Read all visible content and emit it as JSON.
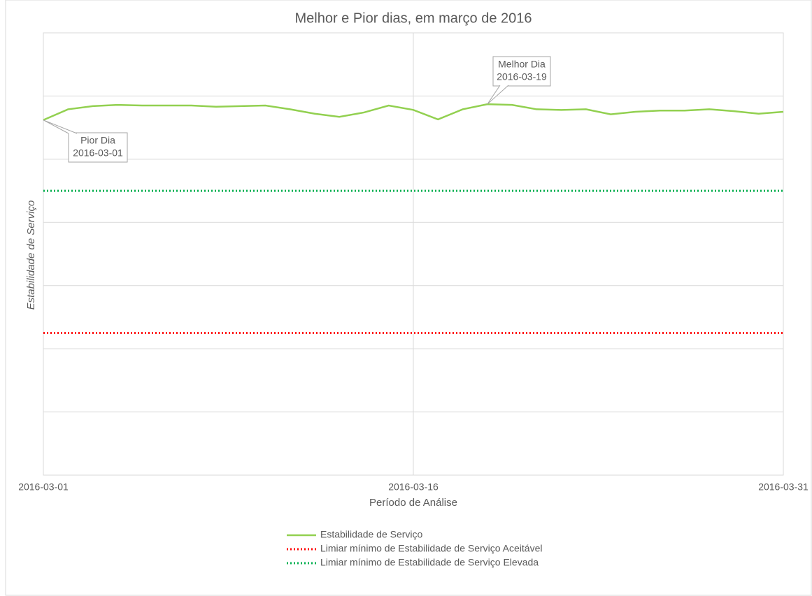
{
  "chart_data": {
    "type": "line",
    "title": "Melhor e Pior dias, em março de 2016",
    "x_label": "Período de Análise",
    "y_label": "Estabilidade de Serviço",
    "x": [
      "2016-03-01",
      "2016-03-02",
      "2016-03-03",
      "2016-03-04",
      "2016-03-05",
      "2016-03-06",
      "2016-03-07",
      "2016-03-08",
      "2016-03-09",
      "2016-03-10",
      "2016-03-11",
      "2016-03-12",
      "2016-03-13",
      "2016-03-14",
      "2016-03-15",
      "2016-03-16",
      "2016-03-17",
      "2016-03-18",
      "2016-03-19",
      "2016-03-20",
      "2016-03-21",
      "2016-03-22",
      "2016-03-23",
      "2016-03-24",
      "2016-03-25",
      "2016-03-26",
      "2016-03-27",
      "2016-03-28",
      "2016-03-29",
      "2016-03-30",
      "2016-03-31"
    ],
    "xticks": [
      "2016-03-01",
      "2016-03-16",
      "2016-03-31"
    ],
    "ylim": [
      0,
      7
    ],
    "yticks": [
      1,
      2,
      3,
      4,
      5,
      6
    ],
    "grid": true,
    "series": [
      {
        "name": "Estabilidade de Serviço",
        "color": "#92d050",
        "style": "solid",
        "values": [
          5.62,
          5.79,
          5.84,
          5.86,
          5.85,
          5.85,
          5.85,
          5.83,
          5.84,
          5.85,
          5.79,
          5.72,
          5.67,
          5.74,
          5.85,
          5.78,
          5.63,
          5.79,
          5.87,
          5.86,
          5.79,
          5.78,
          5.79,
          5.71,
          5.75,
          5.77,
          5.77,
          5.79,
          5.76,
          5.72,
          5.75
        ]
      },
      {
        "name": "Limiar mínimo de Estabilidade de Serviço Aceitável",
        "color": "#ff0000",
        "style": "dotted",
        "values": [
          2.25,
          2.25,
          2.25,
          2.25,
          2.25,
          2.25,
          2.25,
          2.25,
          2.25,
          2.25,
          2.25,
          2.25,
          2.25,
          2.25,
          2.25,
          2.25,
          2.25,
          2.25,
          2.25,
          2.25,
          2.25,
          2.25,
          2.25,
          2.25,
          2.25,
          2.25,
          2.25,
          2.25,
          2.25,
          2.25,
          2.25
        ]
      },
      {
        "name": "Limiar mínimo de Estabilidade de Serviço Elevada",
        "color": "#00b050",
        "style": "dotted",
        "values": [
          4.5,
          4.5,
          4.5,
          4.5,
          4.5,
          4.5,
          4.5,
          4.5,
          4.5,
          4.5,
          4.5,
          4.5,
          4.5,
          4.5,
          4.5,
          4.5,
          4.5,
          4.5,
          4.5,
          4.5,
          4.5,
          4.5,
          4.5,
          4.5,
          4.5,
          4.5,
          4.5,
          4.5,
          4.5,
          4.5,
          4.5
        ]
      }
    ],
    "annotations": [
      {
        "text": [
          "Pior Dia",
          "2016-03-01"
        ]
      },
      {
        "text": [
          "Melhor Dia",
          "2016-03-19"
        ]
      }
    ]
  }
}
